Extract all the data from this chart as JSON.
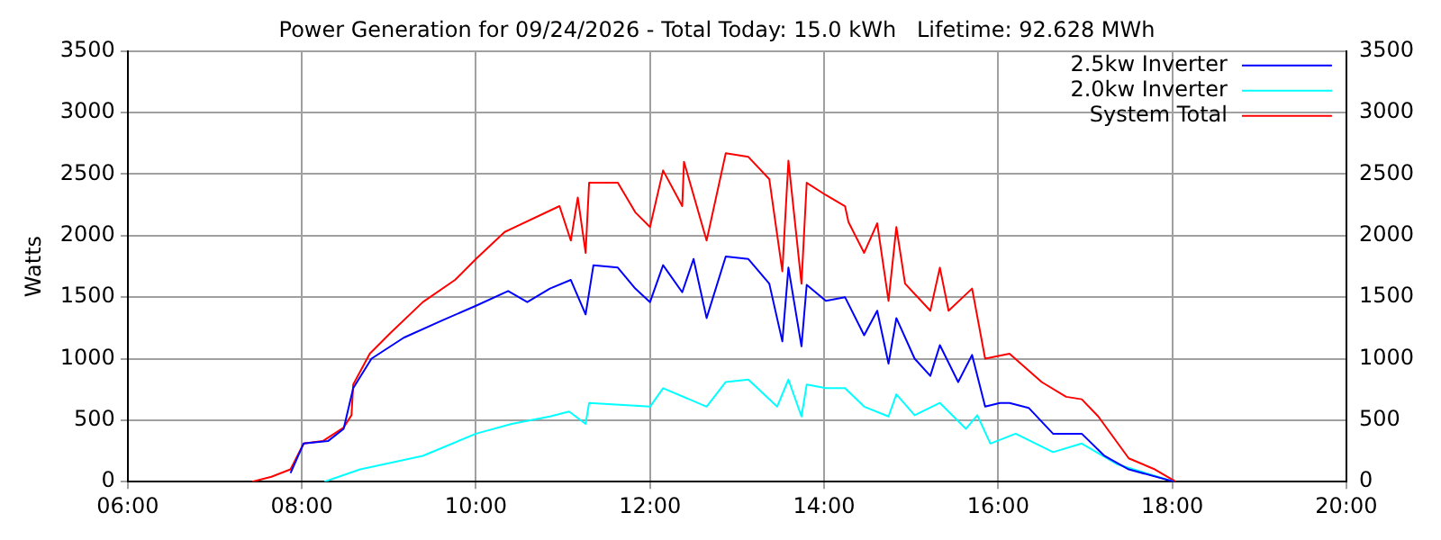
{
  "chart_data": {
    "type": "line",
    "title": "Power Generation for 09/24/2026 - Total Today: 15.0 kWh   Lifetime: 92.628 MWh",
    "ylabel": "Watts",
    "xlim": [
      6,
      20
    ],
    "xticks": [
      {
        "value": 6,
        "label": "06:00"
      },
      {
        "value": 8,
        "label": "08:00"
      },
      {
        "value": 10,
        "label": "10:00"
      },
      {
        "value": 12,
        "label": "12:00"
      },
      {
        "value": 14,
        "label": "14:00"
      },
      {
        "value": 16,
        "label": "16:00"
      },
      {
        "value": 18,
        "label": "18:00"
      },
      {
        "value": 20,
        "label": "20:00"
      }
    ],
    "ylim": [
      0,
      3500
    ],
    "yticks": [
      0,
      500,
      1000,
      1500,
      2000,
      2500,
      3000,
      3500
    ],
    "y2lim": [
      0,
      3500
    ],
    "y2ticks": [
      0,
      500,
      1000,
      1500,
      2000,
      2500,
      3000,
      3500
    ],
    "grid": true,
    "legend": "top right",
    "series": [
      {
        "name": "2.5kw Inverter",
        "color": "#0000ff",
        "x": [
          7.87,
          8.02,
          8.3,
          8.48,
          8.59,
          8.8,
          9.17,
          9.61,
          10.0,
          10.37,
          10.59,
          10.85,
          11.09,
          11.26,
          11.35,
          11.63,
          11.83,
          12.0,
          12.15,
          12.37,
          12.5,
          12.65,
          12.87,
          13.13,
          13.37,
          13.52,
          13.59,
          13.74,
          13.8,
          14.02,
          14.24,
          14.46,
          14.61,
          14.74,
          14.83,
          15.04,
          15.22,
          15.33,
          15.54,
          15.7,
          15.85,
          16.02,
          16.13,
          16.35,
          16.63,
          16.96,
          17.22,
          17.5,
          18.02
        ],
        "values": [
          70,
          310,
          330,
          430,
          760,
          1000,
          1170,
          1310,
          1430,
          1550,
          1460,
          1570,
          1640,
          1360,
          1760,
          1740,
          1570,
          1460,
          1760,
          1540,
          1810,
          1330,
          1830,
          1810,
          1610,
          1140,
          1740,
          1100,
          1600,
          1470,
          1500,
          1190,
          1390,
          960,
          1330,
          1000,
          860,
          1110,
          810,
          1030,
          610,
          640,
          640,
          600,
          390,
          390,
          210,
          100,
          0
        ]
      },
      {
        "name": "2.0kw Inverter",
        "color": "#00ffff",
        "x": [
          8.26,
          8.67,
          9.39,
          10.0,
          10.41,
          10.85,
          11.07,
          11.26,
          11.3,
          12.0,
          12.15,
          12.65,
          12.87,
          13.13,
          13.46,
          13.59,
          13.74,
          13.8,
          14.02,
          14.24,
          14.46,
          14.74,
          14.83,
          15.04,
          15.33,
          15.63,
          15.76,
          15.91,
          16.2,
          16.63,
          16.96,
          17.37,
          18.02
        ],
        "values": [
          0,
          100,
          210,
          390,
          470,
          530,
          570,
          470,
          640,
          610,
          760,
          610,
          810,
          830,
          610,
          830,
          530,
          790,
          760,
          760,
          610,
          530,
          710,
          540,
          640,
          430,
          540,
          310,
          390,
          240,
          310,
          140,
          0
        ]
      },
      {
        "name": "System Total",
        "color": "#ff0000",
        "x": [
          7.43,
          7.65,
          7.87,
          8.02,
          8.24,
          8.48,
          8.57,
          8.59,
          8.78,
          9.02,
          9.39,
          9.76,
          10.0,
          10.33,
          10.96,
          11.09,
          11.17,
          11.26,
          11.3,
          11.63,
          11.83,
          12.0,
          12.15,
          12.37,
          12.39,
          12.65,
          12.87,
          13.13,
          13.37,
          13.52,
          13.59,
          13.74,
          13.8,
          14.02,
          14.24,
          14.28,
          14.46,
          14.61,
          14.74,
          14.83,
          14.93,
          15.22,
          15.33,
          15.43,
          15.7,
          15.85,
          16.13,
          16.5,
          16.78,
          16.96,
          17.15,
          17.5,
          17.8,
          18.04
        ],
        "values": [
          0,
          40,
          100,
          310,
          330,
          440,
          540,
          790,
          1040,
          1210,
          1460,
          1640,
          1810,
          2030,
          2240,
          1960,
          2310,
          1860,
          2430,
          2430,
          2190,
          2070,
          2530,
          2240,
          2600,
          1960,
          2670,
          2640,
          2460,
          1710,
          2610,
          1610,
          2430,
          2330,
          2240,
          2110,
          1860,
          2100,
          1470,
          2070,
          1610,
          1390,
          1740,
          1390,
          1570,
          1000,
          1040,
          810,
          690,
          670,
          530,
          190,
          100,
          0
        ]
      }
    ]
  }
}
